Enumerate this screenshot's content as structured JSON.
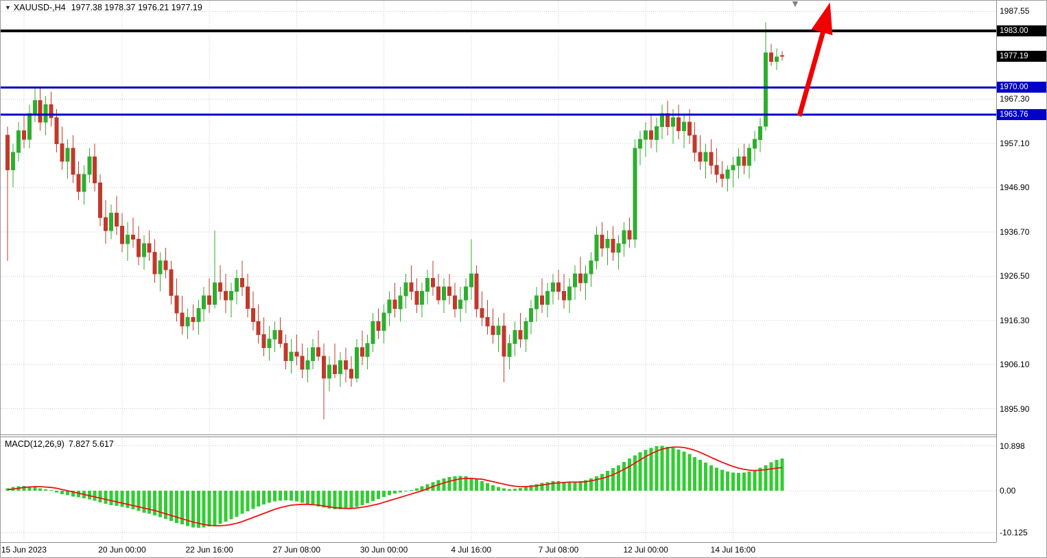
{
  "window": {
    "title_symbol": "XAUUSD-,H4",
    "title_ohlc": "1977.38 1978.37 1976.21 1977.19"
  },
  "chart_data": {
    "type": "candlestick",
    "symbol": "XAUUSD",
    "timeframe": "H4",
    "title": "XAUUSD-,H4 1977.38 1978.37 1976.21 1977.19",
    "current_ohlc": {
      "open": 1977.38,
      "high": 1978.37,
      "low": 1976.21,
      "close": 1977.19
    },
    "ylim": [
      1890,
      1990
    ],
    "grid": true,
    "colors": {
      "up": "#2eae2e",
      "down": "#c0392b",
      "macd_hist": "#32cd32",
      "macd_signal": "#ee1111",
      "line_black": "#000000",
      "line_blue": "#0000c8",
      "arrow_red": "#f00000"
    },
    "y_ticks": [
      "1987.55",
      "1967.30",
      "1957.10",
      "1946.90",
      "1936.70",
      "1926.50",
      "1916.30",
      "1906.10",
      "1895.90"
    ],
    "badges": [
      {
        "text": "1983.00",
        "price": 1983.0,
        "bg": "#000000",
        "name": "resistance-price-badge"
      },
      {
        "text": "1977.19",
        "price": 1977.19,
        "bg": "#000000",
        "name": "current-price-badge"
      },
      {
        "text": "1970.00",
        "price": 1970.0,
        "bg": "#0000c8",
        "name": "support-level-badge-1970"
      },
      {
        "text": "1963.76",
        "price": 1963.76,
        "bg": "#0000c8",
        "name": "support-level-badge-1963"
      }
    ],
    "price_lines": [
      {
        "value": 1983.0,
        "color": "#000000",
        "width": 4,
        "label": "1983.00"
      },
      {
        "value": 1970.0,
        "color": "#0000c8",
        "width": 3,
        "label": "1970.00"
      },
      {
        "value": 1963.76,
        "color": "#0000c8",
        "width": 3,
        "label": "1963.76"
      }
    ],
    "x_ticks": [
      {
        "label": "15 Jun 2023",
        "i": 3
      },
      {
        "label": "20 Jun 00:00",
        "i": 21
      },
      {
        "label": "22 Jun 16:00",
        "i": 37
      },
      {
        "label": "27 Jun 08:00",
        "i": 53
      },
      {
        "label": "30 Jun 00:00",
        "i": 69
      },
      {
        "label": "4 Jul 16:00",
        "i": 85
      },
      {
        "label": "7 Jul 08:00",
        "i": 101
      },
      {
        "label": "12 Jul 00:00",
        "i": 117
      },
      {
        "label": "14 Jul 16:00",
        "i": 133
      }
    ],
    "candles": [
      [
        1959,
        1961,
        1930,
        1951
      ],
      [
        1951,
        1957,
        1947,
        1955
      ],
      [
        1955,
        1962,
        1953,
        1960
      ],
      [
        1960,
        1964,
        1956,
        1958
      ],
      [
        1958,
        1966,
        1956,
        1964
      ],
      [
        1964,
        1970,
        1962,
        1967
      ],
      [
        1967,
        1970,
        1960,
        1962
      ],
      [
        1962,
        1968,
        1959,
        1966
      ],
      [
        1966,
        1969,
        1961,
        1963
      ],
      [
        1963,
        1965,
        1955,
        1957
      ],
      [
        1957,
        1961,
        1951,
        1953
      ],
      [
        1953,
        1958,
        1949,
        1956
      ],
      [
        1956,
        1959,
        1948,
        1950
      ],
      [
        1950,
        1953,
        1944,
        1946
      ],
      [
        1946,
        1952,
        1943,
        1950
      ],
      [
        1950,
        1956,
        1948,
        1954
      ],
      [
        1954,
        1957,
        1946,
        1948
      ],
      [
        1948,
        1950,
        1938,
        1940
      ],
      [
        1940,
        1944,
        1934,
        1937
      ],
      [
        1937,
        1943,
        1935,
        1941
      ],
      [
        1941,
        1945,
        1936,
        1938
      ],
      [
        1938,
        1941,
        1932,
        1934
      ],
      [
        1934,
        1939,
        1930,
        1936
      ],
      [
        1936,
        1940,
        1933,
        1935
      ],
      [
        1935,
        1938,
        1929,
        1931
      ],
      [
        1931,
        1936,
        1928,
        1934
      ],
      [
        1934,
        1937,
        1930,
        1932
      ],
      [
        1932,
        1935,
        1925,
        1927
      ],
      [
        1927,
        1932,
        1923,
        1930
      ],
      [
        1930,
        1933,
        1926,
        1928
      ],
      [
        1928,
        1930,
        1920,
        1922
      ],
      [
        1922,
        1926,
        1916,
        1918
      ],
      [
        1918,
        1922,
        1913,
        1915
      ],
      [
        1915,
        1919,
        1912,
        1917
      ],
      [
        1917,
        1920,
        1914,
        1916
      ],
      [
        1916,
        1921,
        1913,
        1919
      ],
      [
        1919,
        1924,
        1916,
        1922
      ],
      [
        1922,
        1926,
        1918,
        1920
      ],
      [
        1920,
        1937,
        1919,
        1925
      ],
      [
        1925,
        1929,
        1921,
        1923
      ],
      [
        1923,
        1927,
        1918,
        1921
      ],
      [
        1921,
        1925,
        1917,
        1923
      ],
      [
        1923,
        1928,
        1920,
        1926
      ],
      [
        1926,
        1930,
        1922,
        1924
      ],
      [
        1924,
        1927,
        1917,
        1919
      ],
      [
        1919,
        1923,
        1914,
        1916
      ],
      [
        1916,
        1920,
        1911,
        1913
      ],
      [
        1913,
        1917,
        1908,
        1910
      ],
      [
        1910,
        1915,
        1907,
        1912
      ],
      [
        1912,
        1916,
        1909,
        1914
      ],
      [
        1914,
        1917,
        1910,
        1911
      ],
      [
        1911,
        1913,
        1905,
        1907
      ],
      [
        1907,
        1912,
        1904,
        1909
      ],
      [
        1909,
        1913,
        1906,
        1908
      ],
      [
        1908,
        1911,
        1903,
        1905
      ],
      [
        1905,
        1910,
        1902,
        1907
      ],
      [
        1907,
        1912,
        1905,
        1910
      ],
      [
        1910,
        1914,
        1907,
        1908
      ],
      [
        1908,
        1911,
        1893.5,
        1903
      ],
      [
        1903,
        1908,
        1900,
        1906
      ],
      [
        1906,
        1911,
        1903,
        1904
      ],
      [
        1904,
        1909,
        1901,
        1907
      ],
      [
        1907,
        1910,
        1902,
        1905
      ],
      [
        1905,
        1908,
        1901,
        1903
      ],
      [
        1903,
        1912,
        1902,
        1910
      ],
      [
        1910,
        1914,
        1906,
        1908
      ],
      [
        1908,
        1913,
        1905,
        1911
      ],
      [
        1911,
        1918,
        1909,
        1916
      ],
      [
        1916,
        1919,
        1912,
        1914
      ],
      [
        1914,
        1920,
        1911,
        1918
      ],
      [
        1918,
        1923,
        1915,
        1921
      ],
      [
        1921,
        1925,
        1917,
        1919
      ],
      [
        1919,
        1924,
        1916,
        1922
      ],
      [
        1922,
        1927,
        1919,
        1925
      ],
      [
        1925,
        1929,
        1921,
        1923
      ],
      [
        1923,
        1926,
        1918,
        1920
      ],
      [
        1920,
        1925,
        1917,
        1923
      ],
      [
        1923,
        1928,
        1920,
        1926
      ],
      [
        1926,
        1930,
        1922,
        1924
      ],
      [
        1924,
        1927,
        1920,
        1921
      ],
      [
        1921,
        1926,
        1918,
        1924
      ],
      [
        1924,
        1927,
        1920,
        1922
      ],
      [
        1922,
        1925,
        1917,
        1919
      ],
      [
        1919,
        1924,
        1916,
        1921
      ],
      [
        1921,
        1926,
        1918,
        1924
      ],
      [
        1924,
        1935,
        1921,
        1927
      ],
      [
        1927,
        1929,
        1917,
        1919
      ],
      [
        1919,
        1923,
        1915,
        1917
      ],
      [
        1917,
        1921,
        1913,
        1915
      ],
      [
        1915,
        1919,
        1911,
        1913
      ],
      [
        1913,
        1917,
        1909,
        1915
      ],
      [
        1915,
        1918,
        1902,
        1908
      ],
      [
        1908,
        1913,
        1905,
        1911
      ],
      [
        1911,
        1916,
        1908,
        1914
      ],
      [
        1914,
        1918,
        1910,
        1912
      ],
      [
        1912,
        1917,
        1909,
        1916
      ],
      [
        1916,
        1921,
        1913,
        1919
      ],
      [
        1919,
        1924,
        1916,
        1922
      ],
      [
        1922,
        1926,
        1918,
        1920
      ],
      [
        1920,
        1925,
        1917,
        1923
      ],
      [
        1923,
        1927,
        1920,
        1925
      ],
      [
        1925,
        1928,
        1921,
        1923
      ],
      [
        1923,
        1927,
        1919,
        1921
      ],
      [
        1921,
        1926,
        1918,
        1924
      ],
      [
        1924,
        1929,
        1921,
        1927
      ],
      [
        1927,
        1931,
        1923,
        1925
      ],
      [
        1925,
        1929,
        1921,
        1927
      ],
      [
        1927,
        1932,
        1924,
        1930
      ],
      [
        1930,
        1938,
        1928,
        1936
      ],
      [
        1936,
        1939,
        1931,
        1933
      ],
      [
        1933,
        1937,
        1929,
        1935
      ],
      [
        1935,
        1938,
        1930,
        1932
      ],
      [
        1932,
        1936,
        1928,
        1934
      ],
      [
        1934,
        1939,
        1931,
        1937
      ],
      [
        1937,
        1940,
        1933,
        1935
      ],
      [
        1935,
        1958,
        1933,
        1956
      ],
      [
        1956,
        1960,
        1952,
        1958
      ],
      [
        1958,
        1962,
        1954,
        1960
      ],
      [
        1960,
        1964,
        1956,
        1958
      ],
      [
        1958,
        1963,
        1955,
        1961
      ],
      [
        1961,
        1966,
        1958,
        1964
      ],
      [
        1964,
        1967,
        1959,
        1961
      ],
      [
        1961,
        1965,
        1957,
        1963
      ],
      [
        1963,
        1966,
        1958,
        1960
      ],
      [
        1960,
        1964,
        1956,
        1962
      ],
      [
        1962,
        1965,
        1957,
        1959
      ],
      [
        1959,
        1962,
        1953,
        1955
      ],
      [
        1955,
        1959,
        1951,
        1953
      ],
      [
        1953,
        1957,
        1949,
        1955
      ],
      [
        1955,
        1958,
        1950,
        1952
      ],
      [
        1952,
        1956,
        1948,
        1950
      ],
      [
        1950,
        1953,
        1947,
        1949
      ],
      [
        1949,
        1952,
        1946,
        1951
      ],
      [
        1951,
        1954,
        1947,
        1952
      ],
      [
        1952,
        1956,
        1949,
        1954
      ],
      [
        1954,
        1957,
        1950,
        1952
      ],
      [
        1952,
        1957,
        1949,
        1956
      ],
      [
        1956,
        1960,
        1953,
        1958
      ],
      [
        1958,
        1963,
        1955,
        1961
      ],
      [
        1961,
        1985,
        1960,
        1978
      ],
      [
        1978,
        1980,
        1975,
        1976
      ],
      [
        1976,
        1979,
        1974,
        1977
      ],
      [
        1977.38,
        1978.37,
        1976.21,
        1977.19
      ]
    ],
    "macd": {
      "label": "MACD(12,26,9)",
      "values_label": "7.827 5.617",
      "main_value": 7.827,
      "signal_value": 5.617,
      "y_ticks": [
        "10.898",
        "0.00",
        "-10.125"
      ],
      "hist": [
        0.6,
        0.9,
        1.1,
        1.2,
        1.1,
        0.9,
        0.6,
        0.3,
        0.0,
        -0.4,
        -0.8,
        -1.1,
        -1.4,
        -1.6,
        -1.8,
        -2.1,
        -2.4,
        -2.8,
        -3.2,
        -3.5,
        -3.7,
        -3.9,
        -4.2,
        -4.5,
        -4.9,
        -5.3,
        -5.6,
        -6.0,
        -6.4,
        -6.8,
        -7.3,
        -7.8,
        -8.2,
        -8.6,
        -8.9,
        -9.0,
        -8.9,
        -8.7,
        -8.4,
        -8.0,
        -7.5,
        -6.9,
        -6.3,
        -5.6,
        -5.0,
        -4.4,
        -3.8,
        -3.3,
        -2.9,
        -2.6,
        -2.4,
        -2.3,
        -2.4,
        -2.6,
        -2.9,
        -3.2,
        -3.5,
        -3.8,
        -4.1,
        -4.3,
        -4.5,
        -4.5,
        -4.4,
        -4.2,
        -3.9,
        -3.5,
        -3.0,
        -2.5,
        -2.0,
        -1.5,
        -1.1,
        -0.7,
        -0.4,
        -0.1,
        0.2,
        0.6,
        1.1,
        1.6,
        2.1,
        2.6,
        3.0,
        3.3,
        3.5,
        3.6,
        3.5,
        3.2,
        2.8,
        2.3,
        1.8,
        1.3,
        0.9,
        0.6,
        0.4,
        0.5,
        0.7,
        1.0,
        1.3,
        1.6,
        1.9,
        2.1,
        2.3,
        2.3,
        2.2,
        2.1,
        2.1,
        2.3,
        2.6,
        3.0,
        3.5,
        4.1,
        4.8,
        5.5,
        6.2,
        7.0,
        7.8,
        8.6,
        9.3,
        9.9,
        10.4,
        10.8,
        10.9,
        10.7,
        10.4,
        10.0,
        9.5,
        8.9,
        8.2,
        7.5,
        6.8,
        6.2,
        5.6,
        5.1,
        4.7,
        4.4,
        4.3,
        4.4,
        4.7,
        5.1,
        5.6,
        6.2,
        6.9,
        7.5,
        7.83
      ],
      "signal": [
        0.3,
        0.4,
        0.6,
        0.8,
        0.9,
        1.0,
        1.0,
        0.9,
        0.8,
        0.6,
        0.3,
        0.0,
        -0.3,
        -0.6,
        -0.9,
        -1.2,
        -1.5,
        -1.8,
        -2.1,
        -2.4,
        -2.7,
        -3.0,
        -3.3,
        -3.6,
        -3.9,
        -4.2,
        -4.5,
        -4.8,
        -5.2,
        -5.6,
        -6.0,
        -6.4,
        -6.8,
        -7.2,
        -7.6,
        -7.9,
        -8.2,
        -8.4,
        -8.5,
        -8.5,
        -8.4,
        -8.2,
        -7.9,
        -7.5,
        -7.0,
        -6.5,
        -6.0,
        -5.5,
        -5.0,
        -4.5,
        -4.1,
        -3.8,
        -3.5,
        -3.4,
        -3.3,
        -3.3,
        -3.4,
        -3.5,
        -3.7,
        -3.9,
        -4.1,
        -4.2,
        -4.3,
        -4.3,
        -4.2,
        -4.0,
        -3.8,
        -3.5,
        -3.2,
        -2.8,
        -2.4,
        -2.0,
        -1.6,
        -1.2,
        -0.8,
        -0.4,
        0.0,
        0.5,
        1.0,
        1.5,
        1.9,
        2.3,
        2.6,
        2.9,
        3.0,
        3.0,
        2.9,
        2.8,
        2.5,
        2.2,
        1.9,
        1.6,
        1.3,
        1.1,
        1.0,
        1.0,
        1.1,
        1.2,
        1.4,
        1.6,
        1.8,
        1.9,
        2.0,
        2.1,
        2.1,
        2.1,
        2.2,
        2.4,
        2.7,
        3.0,
        3.4,
        3.9,
        4.5,
        5.2,
        5.9,
        6.7,
        7.5,
        8.3,
        9.0,
        9.6,
        10.1,
        10.4,
        10.6,
        10.6,
        10.5,
        10.2,
        9.8,
        9.3,
        8.7,
        8.1,
        7.5,
        6.9,
        6.4,
        5.9,
        5.5,
        5.2,
        5.0,
        4.9,
        5.0,
        5.1,
        5.3,
        5.5,
        5.62
      ]
    },
    "annotations": {
      "trend_arrow": {
        "type": "arrow",
        "direction": "up",
        "color": "#f00000"
      },
      "scroll_marker": {
        "type": "triangle-down",
        "color": "#808080"
      }
    }
  }
}
